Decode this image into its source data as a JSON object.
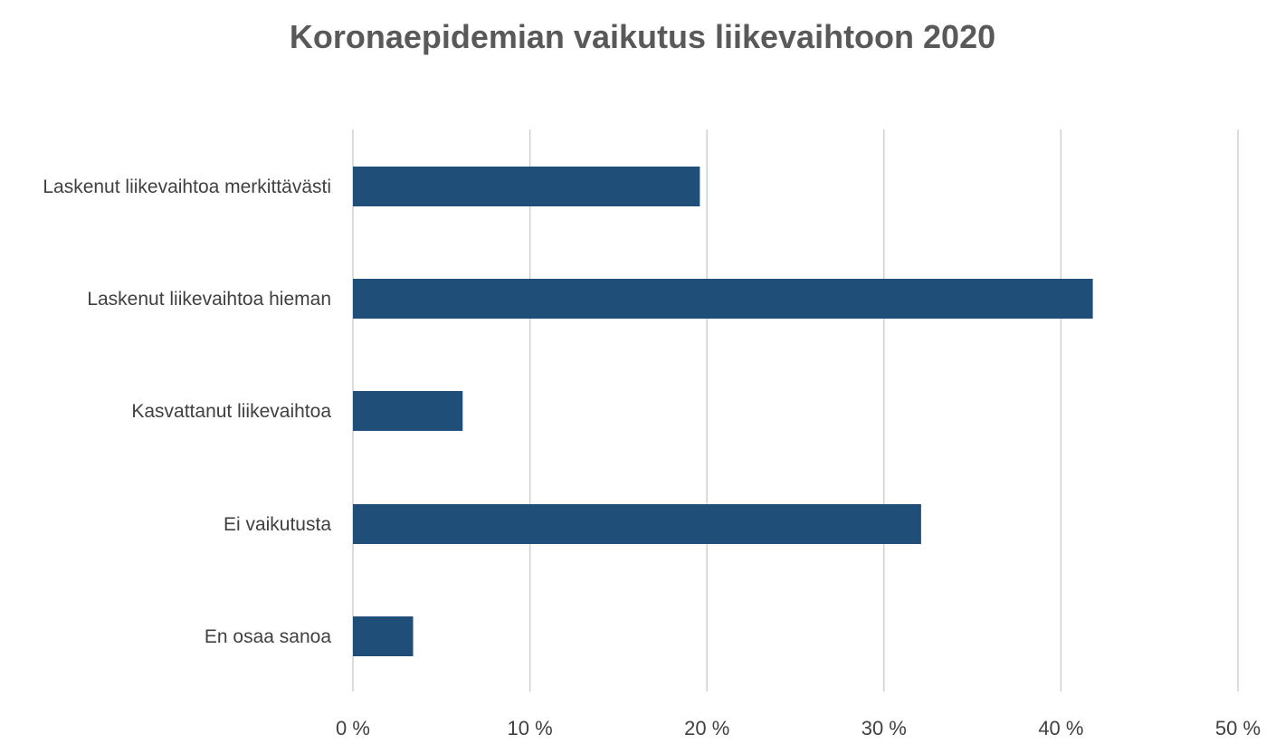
{
  "chart_data": {
    "type": "bar",
    "orientation": "horizontal",
    "title": "Koronaepidemian vaikutus liikevaihtoon 2020",
    "xlabel": "",
    "ylabel": "",
    "categories": [
      "Laskenut liikevaihtoa merkittävästi",
      "Laskenut liikevaihtoa hieman",
      "Kasvattanut liikevaihtoa",
      "Ei vaikutusta",
      "En osaa sanoa"
    ],
    "values": [
      19.6,
      41.8,
      6.2,
      32.1,
      3.4
    ],
    "xlim": [
      0,
      50
    ],
    "ticks": [
      "0 %",
      "10 %",
      "20 %",
      "30 %",
      "40 %",
      "50 %"
    ],
    "tick_values": [
      0,
      10,
      20,
      30,
      40,
      50
    ],
    "grid": true,
    "legend": "none",
    "bar_color": "#1f4e79"
  }
}
